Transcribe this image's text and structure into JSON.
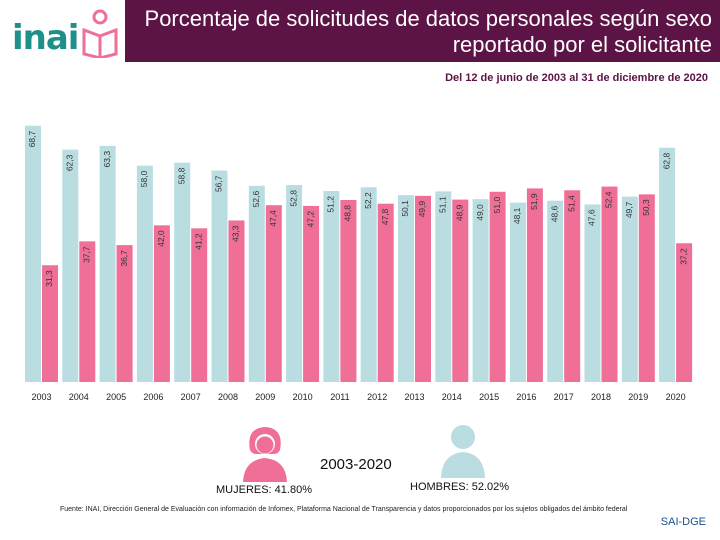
{
  "logo": {
    "text": "inai"
  },
  "header": {
    "title": "Porcentaje de solicitudes de datos personales según sexo reportado por el solicitante"
  },
  "subtitle": "Del 12 de junio de 2003 al 31 de diciembre de 2020",
  "summary": {
    "period": "2003-2020",
    "women_label": "MUJERES: 41.80%",
    "men_label": "HOMBRES: 52.02%"
  },
  "source": "Fuente: INAI, Dirección General de Evaluación con información de Infomex, Plataforma Nacional de Transparencia y datos proporcionados por los sujetos obligados del ámbito federal",
  "footer_code": "SAI-DGE",
  "colors": {
    "men": "#b9dde0",
    "women": "#ef6f97",
    "header": "#5c1346"
  },
  "icons": {
    "women": "woman-avatar-icon",
    "men": "man-avatar-icon",
    "logo": "open-book-person-icon"
  },
  "chart_data": {
    "type": "bar",
    "categories": [
      "2003",
      "2004",
      "2005",
      "2006",
      "2007",
      "2008",
      "2009",
      "2010",
      "2011",
      "2012",
      "2013",
      "2014",
      "2015",
      "2016",
      "2017",
      "2018",
      "2019",
      "2020"
    ],
    "series": [
      {
        "name": "HOMBRES",
        "color": "#b9dde0",
        "values": [
          68.7,
          62.3,
          63.3,
          58.0,
          58.8,
          56.7,
          52.6,
          52.8,
          51.2,
          52.2,
          50.1,
          51.1,
          49.0,
          48.1,
          48.6,
          47.6,
          49.7,
          62.8
        ],
        "labels": [
          "68,7",
          "62,3",
          "63,3",
          "58,0",
          "58,8",
          "56,7",
          "52,6",
          "52,8",
          "51,2",
          "52,2",
          "50,1",
          "51,1",
          "49,0",
          "48,1",
          "48,6",
          "47,6",
          "49,7",
          "62,8"
        ]
      },
      {
        "name": "MUJERES",
        "color": "#ef6f97",
        "values": [
          31.3,
          37.7,
          36.7,
          42.0,
          41.2,
          43.3,
          47.4,
          47.2,
          48.8,
          47.8,
          49.9,
          48.9,
          51.0,
          51.9,
          51.4,
          52.4,
          50.3,
          37.2
        ],
        "labels": [
          "31,3",
          "37,7",
          "36,7",
          "42,0",
          "41,2",
          "43,3",
          "47,4",
          "47,2",
          "48,8",
          "47,8",
          "49,9",
          "48,9",
          "51,0",
          "51,9",
          "51,4",
          "52,4",
          "50,3",
          "37,2"
        ]
      }
    ],
    "grid": false,
    "legend": "none"
  }
}
